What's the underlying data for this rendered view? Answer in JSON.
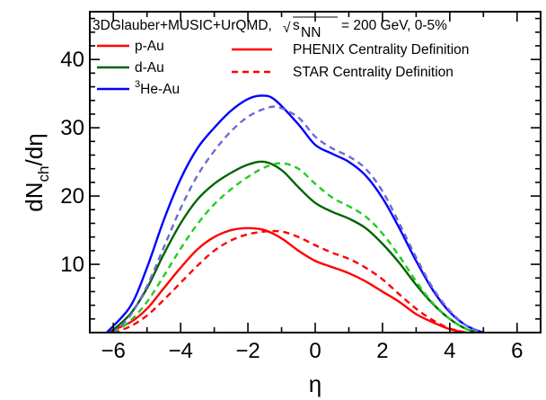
{
  "chart_data": {
    "type": "line",
    "header": {
      "prefix": "3DGlauber+MUSIC+UrQMD,",
      "sqrt_symbol": "√",
      "s_letter": "s",
      "s_subscript": "NN",
      "suffix": "= 200 GeV, 0-5%"
    },
    "xlabel": "η",
    "ylabel": {
      "main": "dN",
      "subscript": "ch",
      "tail": "/dη"
    },
    "xlim": [
      -6.7,
      6.7
    ],
    "ylim": [
      0,
      47
    ],
    "xticks": [
      -6,
      -4,
      -2,
      0,
      2,
      4,
      6
    ],
    "xtick_labels": [
      "−6",
      "−4",
      "−2",
      "0",
      "2",
      "4",
      "6"
    ],
    "yticks": [
      10,
      20,
      30,
      40
    ],
    "ytick_labels": [
      "10",
      "20",
      "30",
      "40"
    ],
    "grid": false,
    "legend_systems": [
      {
        "label_prefix": "",
        "label_super": "",
        "label": "p-Au",
        "color": "#ff0000"
      },
      {
        "label_prefix": "",
        "label_super": "",
        "label": "d-Au",
        "color": "#006400"
      },
      {
        "label_prefix": "",
        "label_super": "3",
        "label": "He-Au",
        "color": "#0000ff"
      }
    ],
    "legend_styles": [
      {
        "label": "PHENIX Centrality Definition",
        "dash": "solid",
        "color": "#ff0000"
      },
      {
        "label": "STAR Centrality Definition",
        "dash": "dashed",
        "color": "#ff0000"
      }
    ],
    "series": [
      {
        "system": "p-Au",
        "style": "solid",
        "color": "#ff0000",
        "points": [
          [
            -6.2,
            0
          ],
          [
            -5.5,
            1.5
          ],
          [
            -5,
            3.5
          ],
          [
            -4.5,
            6.5
          ],
          [
            -4,
            9.5
          ],
          [
            -3.5,
            12.2
          ],
          [
            -3,
            14
          ],
          [
            -2.5,
            15
          ],
          [
            -2,
            15.3
          ],
          [
            -1.5,
            15
          ],
          [
            -1,
            13.8
          ],
          [
            -0.5,
            12
          ],
          [
            0,
            10.5
          ],
          [
            0.5,
            9.6
          ],
          [
            1,
            8.7
          ],
          [
            1.5,
            7.5
          ],
          [
            2,
            6
          ],
          [
            2.5,
            4.5
          ],
          [
            3,
            2.7
          ],
          [
            3.5,
            1.5
          ],
          [
            4,
            0.5
          ],
          [
            4.5,
            0
          ]
        ]
      },
      {
        "system": "p-Au",
        "style": "dashed",
        "color": "#ff0000",
        "points": [
          [
            -6,
            0
          ],
          [
            -5.5,
            0.9
          ],
          [
            -5,
            2.5
          ],
          [
            -4.5,
            4.8
          ],
          [
            -4,
            7.3
          ],
          [
            -3.5,
            9.8
          ],
          [
            -3,
            12
          ],
          [
            -2.5,
            13.5
          ],
          [
            -2,
            14.4
          ],
          [
            -1.5,
            14.8
          ],
          [
            -1,
            14.8
          ],
          [
            -0.5,
            14
          ],
          [
            0,
            12.8
          ],
          [
            0.5,
            11.7
          ],
          [
            1,
            10.8
          ],
          [
            1.5,
            9.5
          ],
          [
            2,
            7.8
          ],
          [
            2.5,
            5.6
          ],
          [
            3,
            3.5
          ],
          [
            3.5,
            1.8
          ],
          [
            4,
            0.6
          ],
          [
            4.5,
            0
          ]
        ]
      },
      {
        "system": "d-Au",
        "style": "solid",
        "color": "#006400",
        "points": [
          [
            -6.1,
            0
          ],
          [
            -5.5,
            2.7
          ],
          [
            -5,
            6.5
          ],
          [
            -4.5,
            11.5
          ],
          [
            -4,
            16
          ],
          [
            -3.5,
            19.5
          ],
          [
            -3,
            21.8
          ],
          [
            -2.5,
            23.4
          ],
          [
            -2,
            24.6
          ],
          [
            -1.5,
            25
          ],
          [
            -1,
            23.8
          ],
          [
            -0.5,
            21.3
          ],
          [
            0,
            19
          ],
          [
            0.5,
            17.7
          ],
          [
            1,
            16.7
          ],
          [
            1.5,
            15.3
          ],
          [
            2,
            13
          ],
          [
            2.5,
            10.2
          ],
          [
            3,
            7
          ],
          [
            3.5,
            4.2
          ],
          [
            4,
            2
          ],
          [
            4.5,
            0.5
          ],
          [
            4.9,
            0
          ]
        ]
      },
      {
        "system": "d-Au",
        "style": "dashed",
        "color": "#22cc22",
        "points": [
          [
            -6,
            0
          ],
          [
            -5.5,
            1.7
          ],
          [
            -5,
            4.5
          ],
          [
            -4.5,
            8.3
          ],
          [
            -4,
            12.3
          ],
          [
            -3.5,
            15.9
          ],
          [
            -3,
            18.8
          ],
          [
            -2.5,
            21
          ],
          [
            -2,
            22.8
          ],
          [
            -1.5,
            24.2
          ],
          [
            -1,
            24.8
          ],
          [
            -0.5,
            24
          ],
          [
            0,
            21.8
          ],
          [
            0.5,
            19.8
          ],
          [
            1,
            18.5
          ],
          [
            1.5,
            17
          ],
          [
            2,
            14.5
          ],
          [
            2.5,
            11.2
          ],
          [
            3,
            7.5
          ],
          [
            3.5,
            4.3
          ],
          [
            4,
            2
          ],
          [
            4.5,
            0.5
          ],
          [
            4.9,
            0
          ]
        ]
      },
      {
        "system": "He-Au",
        "style": "solid",
        "color": "#0000ff",
        "points": [
          [
            -6.2,
            0
          ],
          [
            -5.5,
            3.8
          ],
          [
            -5,
            9.5
          ],
          [
            -4.5,
            16.5
          ],
          [
            -4,
            22.5
          ],
          [
            -3.5,
            27
          ],
          [
            -3,
            30
          ],
          [
            -2.5,
            32.5
          ],
          [
            -2,
            34.2
          ],
          [
            -1.6,
            34.7
          ],
          [
            -1.2,
            34.1
          ],
          [
            -0.5,
            30.5
          ],
          [
            0,
            27.5
          ],
          [
            0.5,
            26.2
          ],
          [
            1,
            25
          ],
          [
            1.5,
            23
          ],
          [
            2,
            19.7
          ],
          [
            2.5,
            15.3
          ],
          [
            3,
            10.5
          ],
          [
            3.5,
            6.2
          ],
          [
            4,
            3
          ],
          [
            4.5,
            1
          ],
          [
            5,
            0
          ]
        ]
      },
      {
        "system": "He-Au",
        "style": "dashed",
        "color": "#6b6bd6",
        "points": [
          [
            -6,
            0
          ],
          [
            -5.5,
            2.5
          ],
          [
            -5,
            6.8
          ],
          [
            -4.5,
            12.5
          ],
          [
            -4,
            18.2
          ],
          [
            -3.5,
            23
          ],
          [
            -3,
            26.6
          ],
          [
            -2.5,
            29.5
          ],
          [
            -2,
            31.6
          ],
          [
            -1.5,
            32.8
          ],
          [
            -1.1,
            33
          ],
          [
            -0.5,
            31.5
          ],
          [
            0,
            28.7
          ],
          [
            0.5,
            27
          ],
          [
            1,
            25.8
          ],
          [
            1.5,
            24
          ],
          [
            2,
            20.7
          ],
          [
            2.5,
            16
          ],
          [
            3,
            11
          ],
          [
            3.5,
            6.5
          ],
          [
            4,
            3.2
          ],
          [
            4.5,
            1
          ],
          [
            5,
            0
          ]
        ]
      }
    ]
  }
}
